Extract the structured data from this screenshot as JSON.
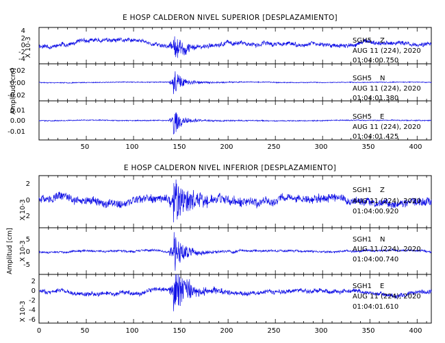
{
  "chart_data": [
    {
      "type": "line",
      "title": "E HOSP CALDERON NIVEL SUPERIOR [DESPLAZAMIENTO]",
      "ylabel": "Amplitud [cm]",
      "xlim": [
        0,
        415
      ],
      "xticks": [
        "50",
        "100",
        "150",
        "200",
        "250",
        "300",
        "350",
        "400"
      ],
      "panels": [
        {
          "station": "SGH5",
          "component": "Z",
          "date": "AUG 11 (224), 2020",
          "time": "01:04:00.750",
          "scale_label": "X 10-3",
          "ylim": [
            -5,
            4.2
          ],
          "yticks": [
            "4",
            "2",
            "0",
            "-2",
            "-4"
          ],
          "baseline_noise": 0.45,
          "drift": 0.7,
          "event_peak": 3.6,
          "decay": 9,
          "seed": 11
        },
        {
          "station": "SGH5",
          "component": "N",
          "date": "AUG 11 (224), 2020",
          "time": "01:04:01.380",
          "ylim": [
            -0.029,
            0.029
          ],
          "yticks": [
            "0.02",
            "0.00",
            "-0.02"
          ],
          "baseline_noise": 0.0006,
          "drift": 0.0004,
          "event_peak": 0.022,
          "decay": 7,
          "seed": 23
        },
        {
          "station": "SGH5",
          "component": "E",
          "date": "AUG 11 (224), 2020",
          "time": "01:04:01.425",
          "ylim": [
            -0.021,
            0.021
          ],
          "yticks": [
            "0.01",
            "0.00",
            "-0.01"
          ],
          "baseline_noise": 0.0005,
          "drift": 0.0003,
          "event_peak": 0.016,
          "decay": 7,
          "seed": 37
        }
      ]
    },
    {
      "type": "line",
      "title": "E HOSP CALDERON NIVEL INFERIOR [DESPLAZAMIENTO]",
      "ylabel": "Amplitud [cm]",
      "xlim": [
        0,
        415
      ],
      "xticks": [
        "0",
        "50",
        "100",
        "150",
        "200",
        "250",
        "300",
        "350",
        "400"
      ],
      "panels": [
        {
          "station": "SGH1",
          "component": "Z",
          "date": "AUG 11 (224), 2020",
          "time": "01:04:00.920",
          "scale_label": "X 10-3",
          "ylim": [
            -3.2,
            3.2
          ],
          "yticks": [
            "2",
            "0",
            "-2"
          ],
          "baseline_noise": 0.45,
          "drift": 0.5,
          "event_peak": 2.9,
          "decay": 14,
          "seed": 51
        },
        {
          "station": "SGH1",
          "component": "N",
          "date": "AUG 11 (224), 2020",
          "time": "01:04:00.740",
          "scale_label": "X 10-3",
          "ylim": [
            -9,
            9
          ],
          "yticks": [
            "5",
            "0",
            "-5"
          ],
          "baseline_noise": 0.35,
          "drift": 0.4,
          "event_peak": 8.5,
          "decay": 8,
          "seed": 67
        },
        {
          "station": "SGH1",
          "component": "E",
          "date": "AUG 11 (224), 2020",
          "time": "01:04:01.610",
          "scale_label": "X 10-3",
          "ylim": [
            -6.7,
            4
          ],
          "yticks": [
            "2",
            "0",
            "-2",
            "-4",
            "-6"
          ],
          "baseline_noise": 0.4,
          "drift": 0.5,
          "event_peak": 5.5,
          "decay": 12,
          "seed": 83
        }
      ]
    }
  ]
}
